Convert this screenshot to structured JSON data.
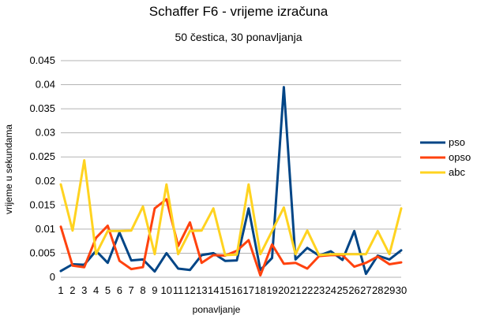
{
  "chart_data": {
    "type": "line",
    "title": "Schaffer F6 - vrijeme izračuna",
    "subtitle": "50 čestica, 30 ponavljanja",
    "xlabel": "ponavljanje",
    "ylabel": "vrijeme u sekundama",
    "categories": [
      "1",
      "2",
      "3",
      "4",
      "5",
      "6",
      "7",
      "8",
      "9",
      "10",
      "11",
      "12",
      "13",
      "14",
      "15",
      "16",
      "17",
      "18",
      "19",
      "20",
      "21",
      "22",
      "23",
      "24",
      "25",
      "26",
      "27",
      "28",
      "29",
      "30"
    ],
    "ylim": [
      0,
      0.045
    ],
    "yticks": [
      "0",
      "0.005",
      "0.01",
      "0.015",
      "0.02",
      "0.025",
      "0.03",
      "0.035",
      "0.04",
      "0.045"
    ],
    "ytick_values": [
      0,
      0.005,
      0.01,
      0.015,
      0.02,
      0.025,
      0.03,
      0.035,
      0.04,
      0.045
    ],
    "grid": "horizontal",
    "legend_position": "right",
    "series": [
      {
        "name": "pso",
        "color": "#004586",
        "values": [
          0.0013,
          0.0027,
          0.0026,
          0.0055,
          0.003,
          0.0093,
          0.0035,
          0.0037,
          0.0012,
          0.005,
          0.0018,
          0.0015,
          0.0046,
          0.005,
          0.0034,
          0.0035,
          0.0143,
          0.0015,
          0.004,
          0.0395,
          0.0037,
          0.0061,
          0.0045,
          0.0054,
          0.0036,
          0.0096,
          0.0007,
          0.0045,
          0.0037,
          0.0056
        ]
      },
      {
        "name": "opso",
        "color": "#ff420e",
        "values": [
          0.0105,
          0.0024,
          0.0021,
          0.0082,
          0.0107,
          0.0034,
          0.0017,
          0.0021,
          0.0143,
          0.0162,
          0.0065,
          0.0114,
          0.003,
          0.0046,
          0.0045,
          0.0055,
          0.0077,
          0.0004,
          0.0068,
          0.0028,
          0.003,
          0.0018,
          0.0044,
          0.0046,
          0.0046,
          0.0022,
          0.003,
          0.0043,
          0.0027,
          0.0031
        ]
      },
      {
        "name": "abc",
        "color": "#ffd320",
        "values": [
          0.0193,
          0.0097,
          0.0243,
          0.0048,
          0.0096,
          0.0096,
          0.0097,
          0.0147,
          0.0048,
          0.0193,
          0.0048,
          0.0096,
          0.0097,
          0.0143,
          0.0046,
          0.0047,
          0.0193,
          0.0048,
          0.0096,
          0.0145,
          0.0048,
          0.0097,
          0.0046,
          0.0048,
          0.0048,
          0.0048,
          0.0048,
          0.0096,
          0.0048,
          0.0143
        ]
      }
    ]
  }
}
